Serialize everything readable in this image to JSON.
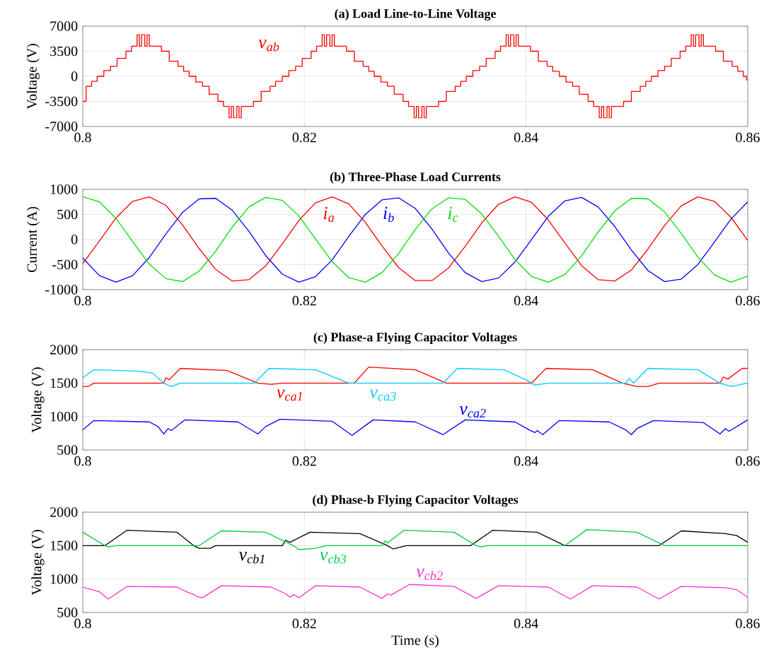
{
  "chart_data": [
    {
      "type": "line",
      "title": "(a) Load Line-to-Line Voltage",
      "ylabel": "Voltage (V)",
      "xlim": [
        0.8,
        0.86
      ],
      "ylim": [
        -7000,
        7000
      ],
      "xticks": [
        0.8,
        0.82,
        0.84,
        0.86
      ],
      "yticks": [
        -7000,
        -3500,
        0,
        3500,
        7000
      ],
      "grid": true,
      "series": [
        {
          "name": "v$_{ab}$",
          "type": "step",
          "color": "#ff0000",
          "x": [
            0.8,
            0.8003,
            0.8008,
            0.8013,
            0.8019,
            0.8025,
            0.8031,
            0.8039,
            0.8044,
            0.8049,
            0.8051,
            0.8053,
            0.8056,
            0.8058,
            0.806,
            0.8071,
            0.8078,
            0.8086,
            0.8091,
            0.8096,
            0.8102,
            0.8108,
            0.8114,
            0.8122,
            0.8127,
            0.8132,
            0.8134,
            0.8136,
            0.8139,
            0.8141,
            0.8143,
            0.8154,
            0.8161,
            0.8169,
            0.8174,
            0.818,
            0.8186,
            0.8192,
            0.8198,
            0.8206,
            0.8211,
            0.8216,
            0.8218,
            0.822,
            0.8223,
            0.8225,
            0.8227,
            0.8238,
            0.8245,
            0.8253,
            0.8258,
            0.8263,
            0.8269,
            0.8275,
            0.8281,
            0.8289,
            0.8294,
            0.8299,
            0.8301,
            0.8303,
            0.8306,
            0.8308,
            0.831,
            0.8321,
            0.8328,
            0.8336,
            0.8341,
            0.8346,
            0.8352,
            0.8358,
            0.8364,
            0.8372,
            0.8377,
            0.8382,
            0.8384,
            0.8386,
            0.8389,
            0.8391,
            0.8393,
            0.8404,
            0.8411,
            0.8419,
            0.8424,
            0.843,
            0.8436,
            0.8442,
            0.8448,
            0.8456,
            0.8461,
            0.8466,
            0.8468,
            0.847,
            0.8473,
            0.8475,
            0.8477,
            0.8488,
            0.8495,
            0.8503,
            0.8508,
            0.8513,
            0.8519,
            0.8525,
            0.8531,
            0.8539,
            0.8544,
            0.8549,
            0.8551,
            0.8553,
            0.8556,
            0.8558,
            0.856,
            0.8571,
            0.8578,
            0.8586,
            0.8591,
            0.8596,
            0.8599,
            0.86
          ],
          "values": [
            -3500,
            -1400,
            -700,
            0,
            800,
            1400,
            2500,
            3500,
            4200,
            5800,
            4200,
            5800,
            4200,
            5800,
            4200,
            3500,
            2100,
            1400,
            700,
            0,
            -800,
            -1400,
            -2500,
            -3500,
            -4200,
            -5800,
            -4200,
            -5800,
            -4200,
            -5800,
            -4200,
            -3500,
            -2100,
            -1400,
            -700,
            0,
            800,
            1400,
            2500,
            3500,
            4200,
            5800,
            4200,
            5800,
            4200,
            5800,
            4200,
            3500,
            2100,
            1400,
            700,
            0,
            -800,
            -1400,
            -2500,
            -3500,
            -4200,
            -5800,
            -4200,
            -5800,
            -4200,
            -5800,
            -4200,
            -3500,
            -2100,
            -1400,
            -700,
            0,
            800,
            1400,
            2500,
            3500,
            4200,
            5800,
            4200,
            5800,
            4200,
            5800,
            4200,
            3500,
            2100,
            1400,
            700,
            0,
            -800,
            -1400,
            -2500,
            -3500,
            -4200,
            -5800,
            -4200,
            -5800,
            -4200,
            -5800,
            -4200,
            -3500,
            -2100,
            -1400,
            -700,
            0,
            800,
            1400,
            2500,
            3500,
            4200,
            5800,
            4200,
            5800,
            4200,
            5800,
            4200,
            3500,
            2100,
            1400,
            700,
            0,
            -500,
            -500
          ]
        }
      ]
    },
    {
      "type": "line",
      "title": "(b) Three-Phase Load Currents",
      "ylabel": "Current (A)",
      "xlim": [
        0.8,
        0.86
      ],
      "ylim": [
        -1000,
        1000
      ],
      "xticks": [
        0.8,
        0.82,
        0.84,
        0.86
      ],
      "yticks": [
        -1000,
        -500,
        0,
        500,
        1000
      ],
      "grid": true,
      "x": [
        0.8,
        0.8015,
        0.803,
        0.8045,
        0.806,
        0.8075,
        0.809,
        0.8105,
        0.812,
        0.8135,
        0.815,
        0.8165,
        0.818,
        0.8195,
        0.821,
        0.8225,
        0.824,
        0.8255,
        0.827,
        0.8285,
        0.83,
        0.8315,
        0.833,
        0.8345,
        0.836,
        0.8375,
        0.839,
        0.8405,
        0.842,
        0.8435,
        0.845,
        0.8465,
        0.848,
        0.8495,
        0.851,
        0.8525,
        0.854,
        0.8555,
        0.857,
        0.8585,
        0.86
      ],
      "series": [
        {
          "name": "i$_{a}$",
          "color": "#ff0000",
          "values": [
            -480,
            -30,
            430,
            760,
            850,
            680,
            290,
            -180,
            -600,
            -830,
            -800,
            -530,
            -90,
            380,
            730,
            850,
            710,
            340,
            -130,
            -560,
            -820,
            -820,
            -570,
            -140,
            330,
            700,
            850,
            740,
            390,
            -70,
            -520,
            -800,
            -830,
            -610,
            -190,
            280,
            670,
            850,
            760,
            440,
            -20
          ]
        },
        {
          "name": "i$_{b}$",
          "color": "#0000ff",
          "values": [
            -370,
            -720,
            -850,
            -720,
            -360,
            110,
            540,
            810,
            820,
            580,
            160,
            -320,
            -690,
            -850,
            -740,
            -410,
            60,
            500,
            790,
            830,
            620,
            210,
            -270,
            -660,
            -840,
            -770,
            -450,
            0,
            460,
            770,
            840,
            650,
            260,
            -210,
            -620,
            -840,
            -790,
            -500,
            -50,
            410,
            750
          ]
        },
        {
          "name": "i$_{c}$",
          "color": "#00e000",
          "values": [
            850,
            750,
            420,
            -40,
            -490,
            -780,
            -840,
            -630,
            -230,
            250,
            650,
            840,
            780,
            470,
            10,
            -440,
            -760,
            -850,
            -660,
            -280,
            200,
            610,
            830,
            800,
            510,
            70,
            -400,
            -740,
            -850,
            -700,
            -330,
            150,
            570,
            820,
            810,
            550,
            120,
            -350,
            -710,
            -850,
            -730
          ]
        }
      ]
    },
    {
      "type": "line",
      "title": "(c) Phase-a Flying Capacitor Voltages",
      "ylabel": "Voltage (V)",
      "xlim": [
        0.8,
        0.86
      ],
      "ylim": [
        500,
        2000
      ],
      "xticks": [
        0.8,
        0.82,
        0.84,
        0.86
      ],
      "yticks": [
        500,
        1000,
        1500,
        2000
      ],
      "grid": true,
      "series": [
        {
          "name": "v$_{ca1}$",
          "color": "#ff0000",
          "x": [
            0.8,
            0.8005,
            0.801,
            0.8073,
            0.8075,
            0.8078,
            0.8088,
            0.813,
            0.8158,
            0.817,
            0.818,
            0.8245,
            0.8258,
            0.83,
            0.8328,
            0.8405,
            0.8418,
            0.846,
            0.8487,
            0.85,
            0.851,
            0.852,
            0.8575,
            0.8578,
            0.8582,
            0.8595,
            0.86
          ],
          "values": [
            1450,
            1450,
            1500,
            1500,
            1580,
            1550,
            1720,
            1690,
            1500,
            1480,
            1500,
            1500,
            1740,
            1700,
            1500,
            1500,
            1720,
            1700,
            1500,
            1450,
            1450,
            1500,
            1500,
            1590,
            1560,
            1720,
            1720
          ]
        },
        {
          "name": "v$_{ca3}$",
          "color": "#00ccff",
          "x": [
            0.8,
            0.801,
            0.805,
            0.8063,
            0.8073,
            0.808,
            0.8088,
            0.8155,
            0.8168,
            0.821,
            0.824,
            0.8325,
            0.8338,
            0.838,
            0.84,
            0.8408,
            0.842,
            0.849,
            0.8493,
            0.8497,
            0.851,
            0.8555,
            0.8575,
            0.8585,
            0.86
          ],
          "values": [
            1580,
            1700,
            1680,
            1650,
            1500,
            1450,
            1500,
            1500,
            1720,
            1700,
            1500,
            1500,
            1720,
            1700,
            1550,
            1470,
            1500,
            1500,
            1570,
            1500,
            1720,
            1700,
            1500,
            1450,
            1500
          ]
        },
        {
          "name": "v$_{ca2}$",
          "color": "#0000ff",
          "x": [
            0.8,
            0.801,
            0.806,
            0.8068,
            0.8073,
            0.8077,
            0.808,
            0.8092,
            0.814,
            0.8158,
            0.8165,
            0.8178,
            0.8225,
            0.8243,
            0.8262,
            0.83,
            0.8325,
            0.8345,
            0.839,
            0.8403,
            0.8408,
            0.841,
            0.8415,
            0.843,
            0.8475,
            0.849,
            0.8495,
            0.85,
            0.8515,
            0.856,
            0.8575,
            0.858,
            0.8583,
            0.86
          ],
          "values": [
            800,
            940,
            920,
            850,
            740,
            820,
            790,
            950,
            920,
            740,
            850,
            960,
            930,
            720,
            950,
            920,
            730,
            950,
            920,
            800,
            760,
            790,
            730,
            940,
            920,
            800,
            730,
            820,
            940,
            910,
            740,
            820,
            780,
            950
          ]
        }
      ]
    },
    {
      "type": "line",
      "title": "(d) Phase-b Flying Capacitor Voltages",
      "xlabel": "Time (s)",
      "ylabel": "Voltage (V)",
      "xlim": [
        0.8,
        0.86
      ],
      "ylim": [
        500,
        2000
      ],
      "xticks": [
        0.8,
        0.82,
        0.84,
        0.86
      ],
      "yticks": [
        500,
        1000,
        1500,
        2000
      ],
      "grid": true,
      "series": [
        {
          "name": "v$_{cb1}$",
          "color": "#000000",
          "x": [
            0.8,
            0.802,
            0.804,
            0.8085,
            0.81,
            0.8105,
            0.8115,
            0.812,
            0.818,
            0.8183,
            0.8187,
            0.8205,
            0.825,
            0.8275,
            0.828,
            0.8292,
            0.835,
            0.837,
            0.841,
            0.8435,
            0.852,
            0.854,
            0.858,
            0.859,
            0.86
          ],
          "values": [
            1500,
            1500,
            1730,
            1700,
            1500,
            1460,
            1460,
            1500,
            1500,
            1580,
            1550,
            1700,
            1680,
            1500,
            1450,
            1500,
            1500,
            1730,
            1700,
            1500,
            1500,
            1720,
            1680,
            1650,
            1550
          ]
        },
        {
          "name": "v$_{cb3}$",
          "color": "#00cc44",
          "x": [
            0.8,
            0.802,
            0.8023,
            0.803,
            0.8105,
            0.8125,
            0.8165,
            0.819,
            0.8195,
            0.821,
            0.822,
            0.827,
            0.8273,
            0.8275,
            0.829,
            0.8335,
            0.8355,
            0.836,
            0.8365,
            0.8435,
            0.8455,
            0.85,
            0.8525,
            0.86
          ],
          "values": [
            1700,
            1500,
            1480,
            1500,
            1500,
            1720,
            1700,
            1500,
            1440,
            1460,
            1500,
            1500,
            1570,
            1540,
            1730,
            1700,
            1500,
            1480,
            1500,
            1500,
            1740,
            1700,
            1500,
            1500
          ]
        },
        {
          "name": "v$_{cb2}$",
          "color": "#ff33cc",
          "x": [
            0.8,
            0.8015,
            0.8023,
            0.804,
            0.8085,
            0.8095,
            0.81,
            0.8103,
            0.8108,
            0.8125,
            0.817,
            0.8183,
            0.8187,
            0.819,
            0.8195,
            0.821,
            0.825,
            0.827,
            0.8275,
            0.8278,
            0.8295,
            0.8335,
            0.8355,
            0.8375,
            0.842,
            0.844,
            0.846,
            0.85,
            0.852,
            0.854,
            0.858,
            0.859,
            0.86
          ],
          "values": [
            880,
            810,
            700,
            890,
            880,
            800,
            770,
            740,
            720,
            900,
            880,
            780,
            730,
            770,
            720,
            900,
            880,
            710,
            780,
            760,
            920,
            890,
            710,
            900,
            880,
            700,
            900,
            880,
            700,
            890,
            870,
            840,
            730
          ]
        }
      ]
    }
  ]
}
